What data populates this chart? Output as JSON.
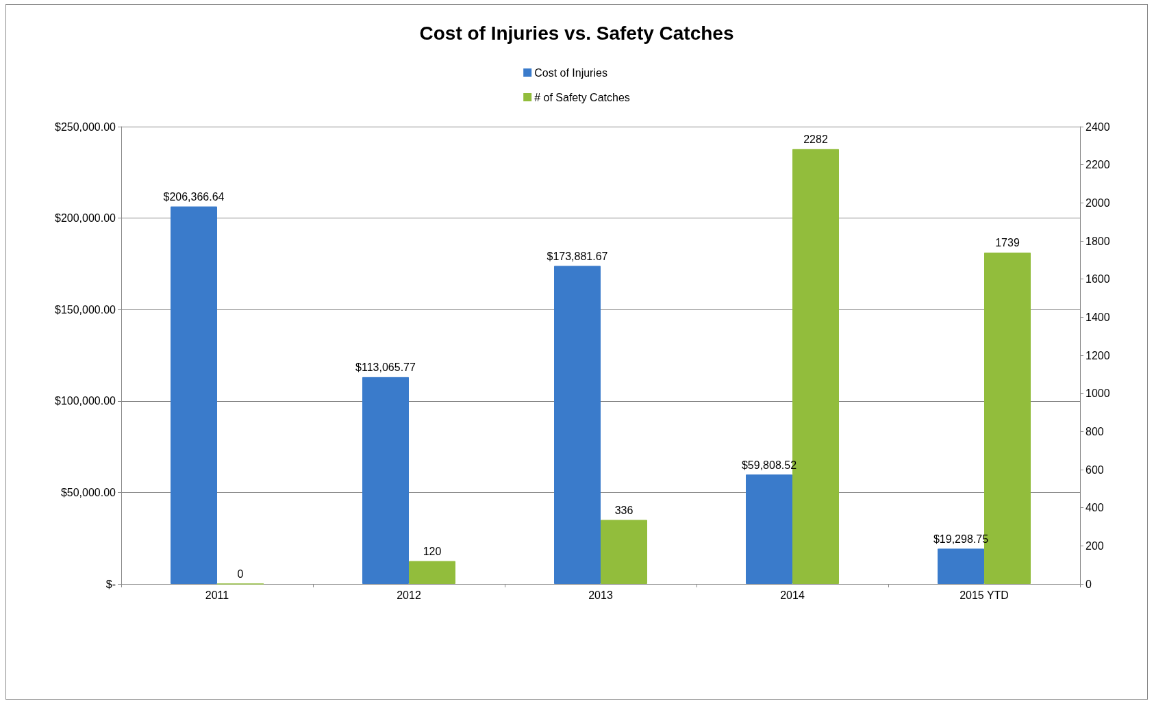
{
  "chart_data": {
    "type": "bar",
    "title": "Cost of Injuries vs. Safety Catches",
    "categories": [
      "2011",
      "2012",
      "2013",
      "2014",
      "2015 YTD"
    ],
    "series": [
      {
        "name": "Cost of Injuries",
        "color": "#3a7bcb",
        "values": [
          206366.64,
          113065.77,
          173881.67,
          59808.52,
          19298.75
        ],
        "value_labels": [
          "$206,366.64",
          "$113,065.77",
          "$173,881.67",
          "$59,808.52",
          "$19,298.75"
        ]
      },
      {
        "name": "# of Safety Catches",
        "color": "#92bd3c",
        "axis": "y2",
        "values": [
          0,
          120,
          336,
          2282,
          1739
        ],
        "value_labels": [
          "0",
          "120",
          "336",
          "2282",
          "1739"
        ]
      }
    ],
    "ylim": [
      0,
      250000
    ],
    "yticks": [
      {
        "value": 0,
        "label": "$-"
      },
      {
        "value": 50000,
        "label": "$50,000.00"
      },
      {
        "value": 100000,
        "label": "$100,000.00"
      },
      {
        "value": 150000,
        "label": "$150,000.00"
      },
      {
        "value": 200000,
        "label": "$200,000.00"
      },
      {
        "value": 250000,
        "label": "$250,000.00"
      }
    ],
    "y2lim": [
      0,
      2400
    ],
    "y2ticks": [
      0,
      200,
      400,
      600,
      800,
      1000,
      1200,
      1400,
      1600,
      1800,
      2000,
      2200,
      2400
    ],
    "grid": "y",
    "legend": "top"
  }
}
